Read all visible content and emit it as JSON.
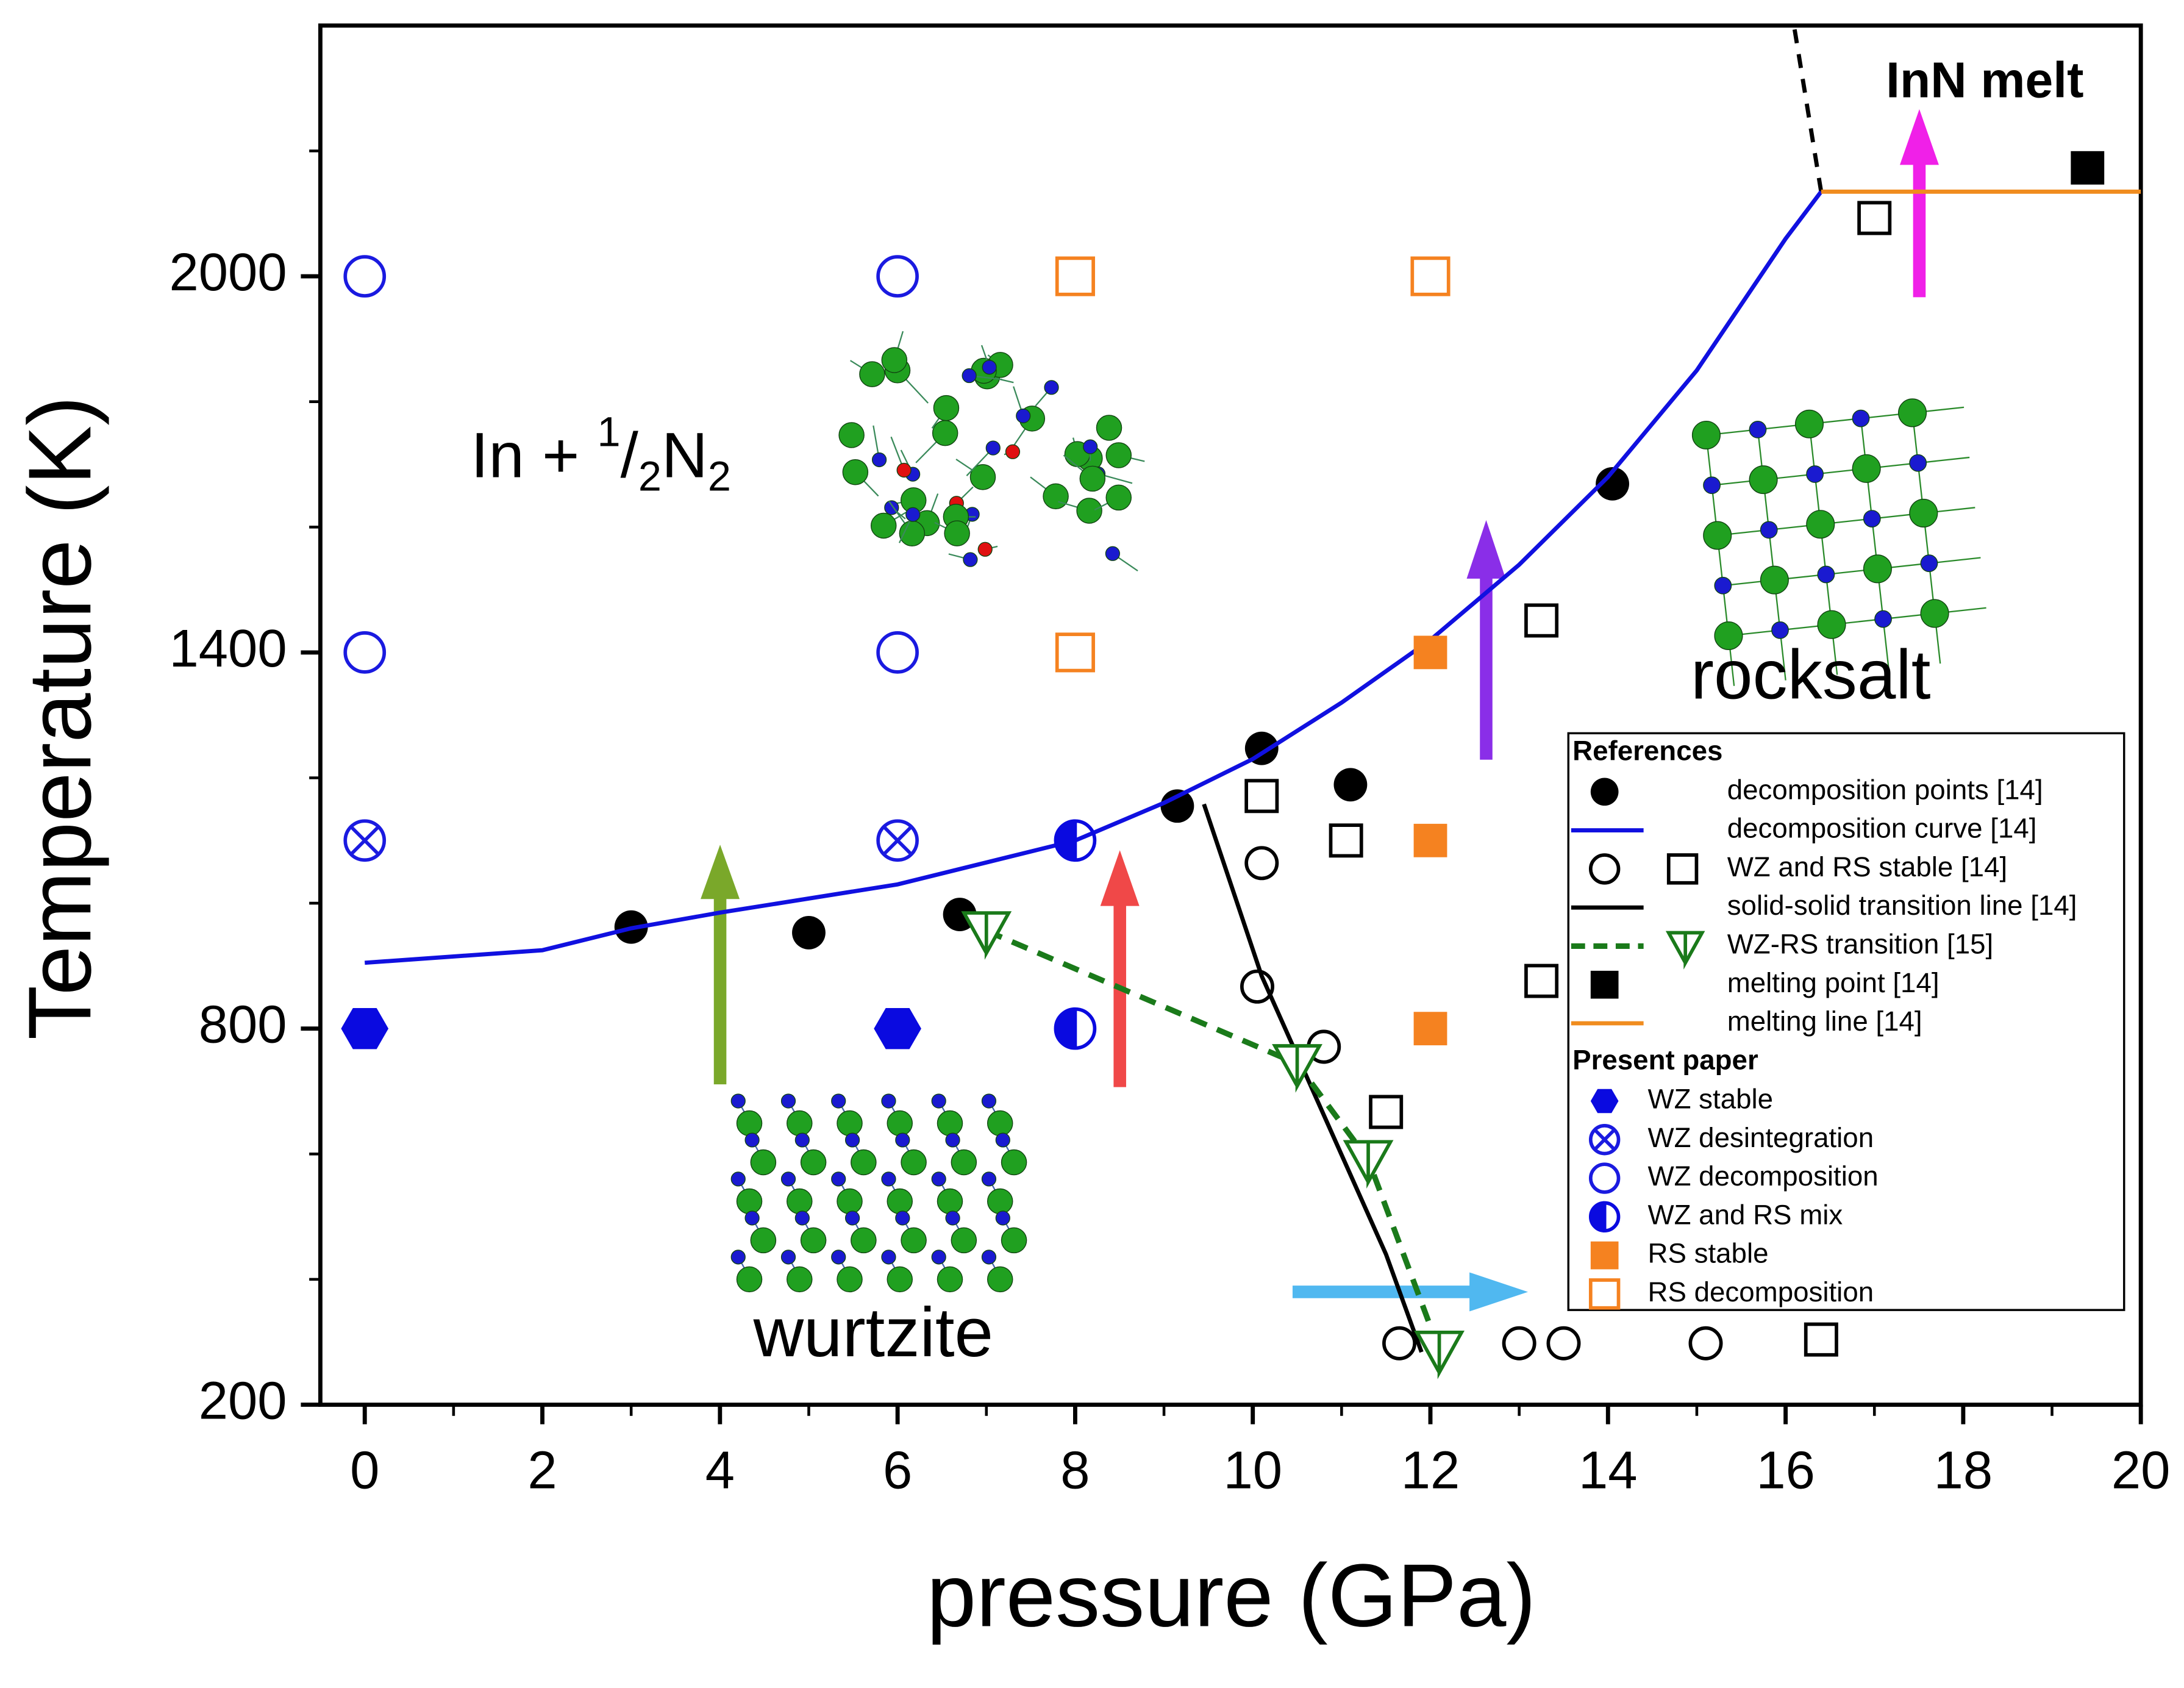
{
  "chart_data": {
    "type": "scatter",
    "xlabel": "pressure (GPa)",
    "ylabel": "Temperature (K)",
    "xlim": [
      -0.5,
      20
    ],
    "ylim": [
      200,
      2400
    ],
    "xticks": [
      0,
      2,
      4,
      6,
      8,
      10,
      12,
      14,
      16,
      18,
      20
    ],
    "xminorticks": [
      1,
      3,
      5,
      7,
      9,
      11,
      13,
      15,
      17,
      19
    ],
    "yticks": [
      200,
      800,
      1400,
      2000
    ],
    "yminorticks": [
      400,
      600,
      1000,
      1200,
      1600,
      1800,
      2200
    ],
    "phase_labels": {
      "wurtzite": "wurtzite",
      "rocksalt": "rocksalt",
      "melt": "InN melt",
      "mixture": [
        "In + ",
        "1",
        "/",
        "2",
        "N",
        "2"
      ]
    },
    "legend_titles": {
      "references": "References",
      "present_paper": "Present paper"
    },
    "references": [
      {
        "name": "decomposition points [14]",
        "color": "#000000",
        "marker": "circle-filled",
        "x": [
          3,
          5,
          6.7,
          9.15,
          10.1,
          11.1,
          14.05
        ],
        "y": [
          962,
          953,
          982,
          1155,
          1247,
          1189,
          1669
        ]
      },
      {
        "name": "decomposition curve [14]",
        "color": "#1010e0",
        "marker": "line",
        "x": [
          0,
          2,
          3,
          4,
          6,
          8,
          9,
          10,
          11,
          12,
          13,
          14,
          15,
          16,
          16.4
        ],
        "y": [
          905,
          925,
          960,
          985,
          1030,
          1100,
          1160,
          1230,
          1320,
          1420,
          1540,
          1680,
          1850,
          2060,
          2135
        ]
      },
      {
        "name": "WZ and RS stable [14]",
        "color": "#000000",
        "marker": "open",
        "shapes": [
          "circle",
          "circle",
          "circle",
          "circle",
          "circle",
          "circle",
          "circle",
          "square",
          "square",
          "square",
          "square",
          "square",
          "square",
          "square"
        ],
        "x": [
          10.1,
          10.05,
          10.8,
          11.65,
          13,
          13.5,
          15.1,
          10.1,
          11.05,
          13.25,
          13.25,
          11.5,
          16.4,
          17
        ],
        "y": [
          1064,
          867,
          771,
          298,
          298,
          298,
          298,
          1171,
          1100,
          1451,
          876,
          667,
          304,
          2093
        ]
      },
      {
        "name": "solid-solid transition line [14]",
        "color": "#000000",
        "marker": "line",
        "x": [
          9.45,
          10.1,
          10.8,
          11.5,
          11.9
        ],
        "y": [
          1158,
          884,
          662,
          440,
          284
        ]
      },
      {
        "name": "WZ-RS transition [15]",
        "color": "#1a7a1a",
        "marker": "dashed-triangle",
        "x": [
          7,
          10.5,
          11.3,
          12.1
        ],
        "y": [
          956,
          744,
          591,
          287
        ]
      },
      {
        "name": "melting point [14]",
        "color": "#000000",
        "marker": "square-filled",
        "x": [
          19.4
        ],
        "y": [
          2173
        ]
      },
      {
        "name": "melting line [14]",
        "color": "#f08c1e",
        "marker": "line",
        "x": [
          16.4,
          20
        ],
        "y": [
          2135,
          2135
        ]
      }
    ],
    "melt_boundary": {
      "color": "#000000",
      "x": [
        16.4,
        16.1
      ],
      "y": [
        2135,
        2395
      ]
    },
    "present_paper": [
      {
        "name": "WZ stable",
        "color": "#0a0ae0",
        "marker": "hexagon",
        "x": [
          0,
          6
        ],
        "y": [
          800,
          800
        ]
      },
      {
        "name": "WZ desintegration",
        "color": "#1a1ae0",
        "marker": "crossed-circle",
        "x": [
          0,
          6
        ],
        "y": [
          1100,
          1100
        ]
      },
      {
        "name": "WZ decomposition",
        "color": "#1a1ae0",
        "marker": "circle-open",
        "x": [
          0,
          6,
          0,
          6
        ],
        "y": [
          2000,
          2000,
          1400,
          1400
        ]
      },
      {
        "name": "WZ and RS mix",
        "color": "#0a0ae0",
        "marker": "half-circle",
        "x": [
          8,
          8
        ],
        "y": [
          1100,
          800
        ]
      },
      {
        "name": "RS stable",
        "color": "#f58220",
        "marker": "square-filled",
        "x": [
          12,
          12,
          12
        ],
        "y": [
          1400,
          1100,
          800
        ]
      },
      {
        "name": "RS decomposition",
        "color": "#f58220",
        "marker": "square-open",
        "x": [
          8,
          12,
          8
        ],
        "y": [
          2000,
          2000,
          1400
        ]
      }
    ]
  }
}
